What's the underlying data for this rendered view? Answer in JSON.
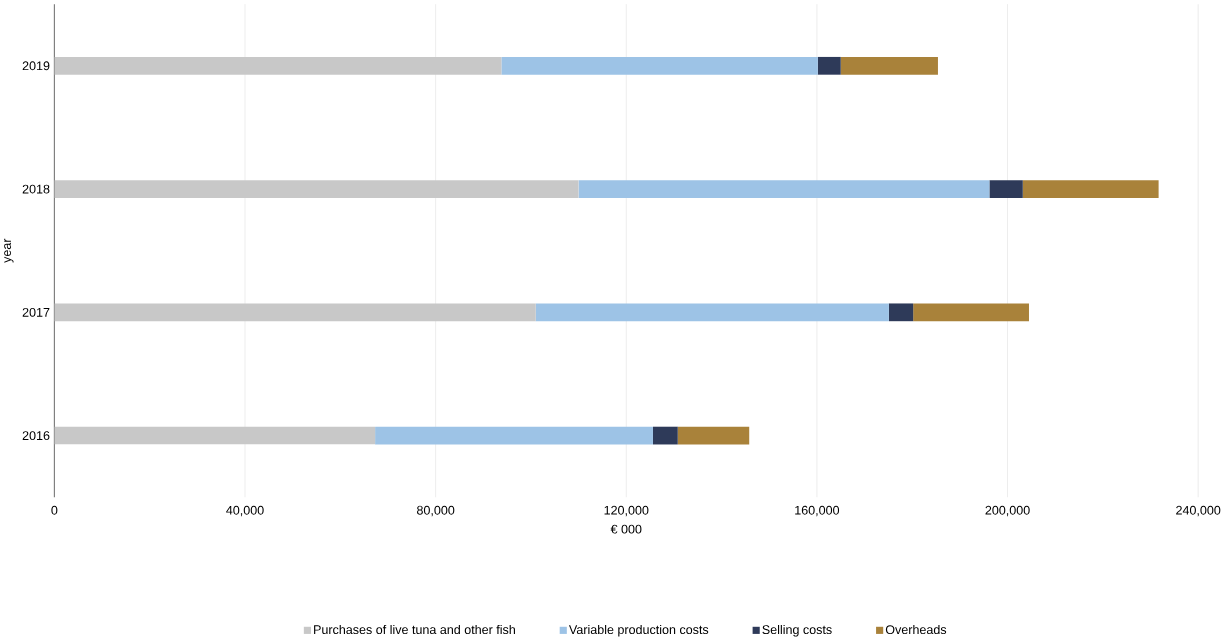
{
  "chart_data": {
    "type": "bar",
    "orientation": "horizontal",
    "stacked": true,
    "categories": [
      "2019",
      "2018",
      "2017",
      "2016"
    ],
    "xlabel": "€ 000",
    "ylabel": "year",
    "series": [
      {
        "name": "Purchases of live tuna and other fish",
        "color": "#c8c8c8",
        "values": [
          93800,
          110000,
          101000,
          67300
        ]
      },
      {
        "name": "Variable production costs",
        "color": "#9dc3e6",
        "values": [
          66400,
          86200,
          74100,
          58300
        ]
      },
      {
        "name": "Selling costs",
        "color": "#2e3a59",
        "values": [
          4800,
          7000,
          5100,
          5200
        ]
      },
      {
        "name": "Overheads",
        "color": "#a9823a",
        "values": [
          20400,
          28500,
          24300,
          15000
        ]
      }
    ],
    "xlim": [
      0,
      240000
    ],
    "xticks": [
      0,
      {
        "value": 40000,
        "label": "40,000"
      },
      {
        "value": 80000,
        "label": "80,000"
      },
      {
        "value": 120000,
        "label": "120,000"
      },
      {
        "value": 160000,
        "label": "160,000"
      },
      {
        "value": 200000,
        "label": "200,000"
      },
      {
        "value": 240000,
        "label": "240,000"
      }
    ],
    "grid": "x",
    "legend": "bottom"
  }
}
